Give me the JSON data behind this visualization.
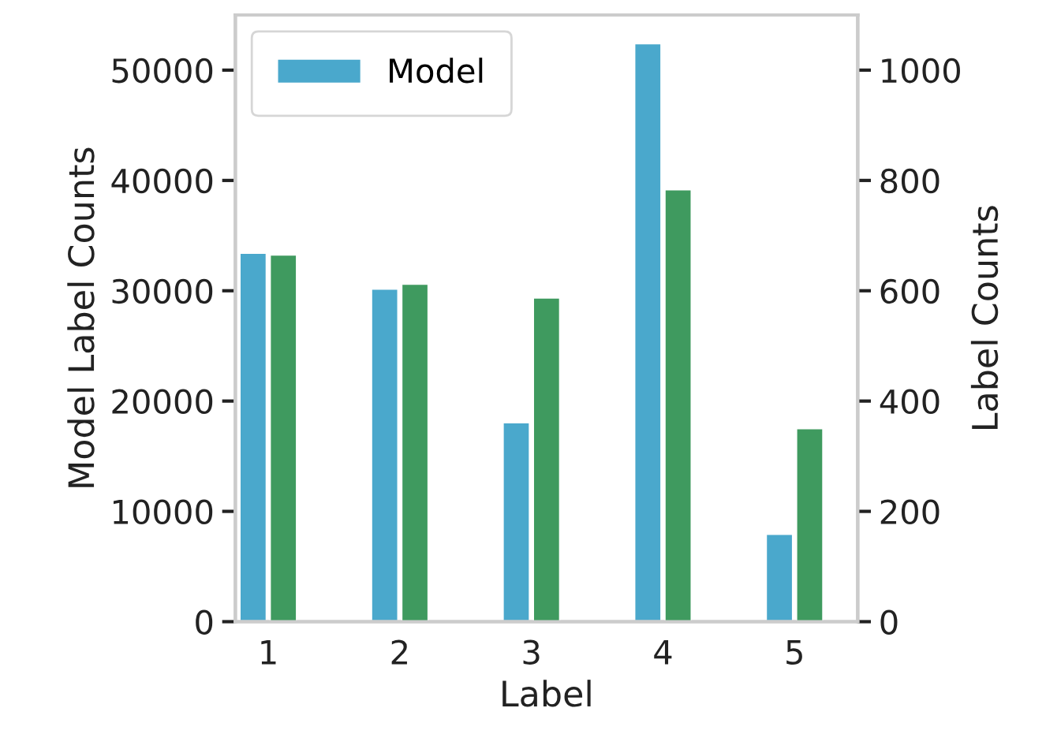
{
  "chart_data": {
    "type": "bar",
    "categories": [
      "1",
      "2",
      "3",
      "4",
      "5"
    ],
    "xlabel": "Label",
    "ylabel": "Model Label Counts",
    "y2label": "Label Counts",
    "series": [
      {
        "name": "Model",
        "color": "#4aa8cc",
        "values": [
          33400,
          30150,
          18030,
          52400,
          7930
        ]
      },
      {
        "color": "#3f9a5f",
        "axis": "y2",
        "values": [
          665,
          612,
          587,
          783,
          350
        ]
      }
    ],
    "ylim": [
      0,
      55000
    ],
    "yticks": [
      0,
      10000,
      20000,
      30000,
      40000,
      50000
    ],
    "y2lim": [
      0,
      1100
    ],
    "y2ticks": [
      0,
      200,
      400,
      600,
      800,
      1000
    ],
    "grid": false,
    "legend": "top left"
  }
}
